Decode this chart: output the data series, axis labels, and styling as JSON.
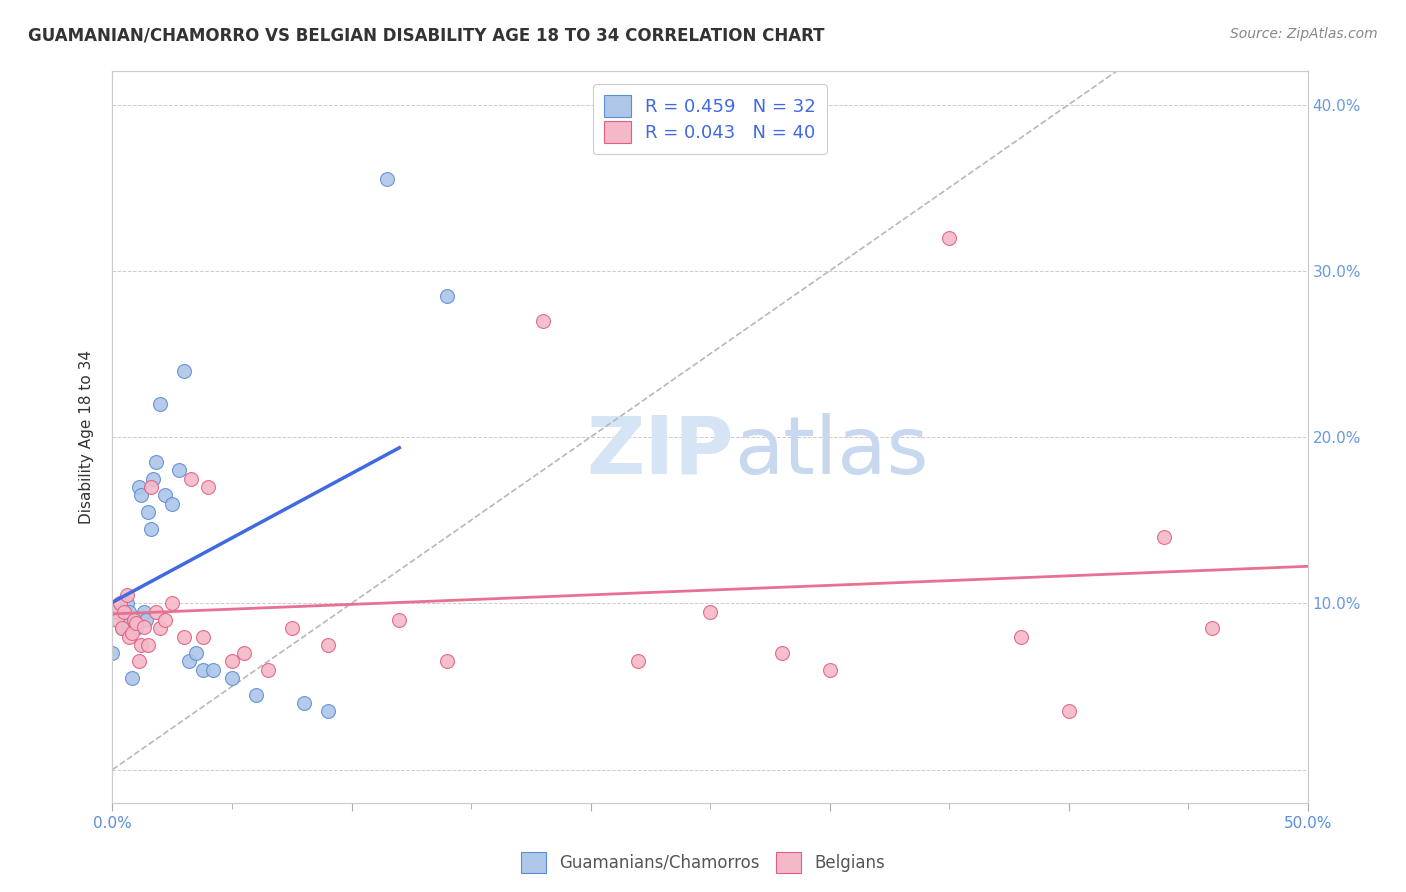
{
  "title": "GUAMANIAN/CHAMORRO VS BELGIAN DISABILITY AGE 18 TO 34 CORRELATION CHART",
  "source": "Source: ZipAtlas.com",
  "ylabel": "Disability Age 18 to 34",
  "xlim": [
    0.0,
    0.5
  ],
  "ylim": [
    -0.02,
    0.42
  ],
  "guamanian_color": "#aec6e8",
  "belgian_color": "#f5b8c8",
  "guamanian_edge_color": "#5b8dd9",
  "belgian_edge_color": "#e06080",
  "guamanian_line_color": "#4169e1",
  "belgian_line_color": "#e87090",
  "diagonal_line_color": "#b8b8b8",
  "watermark_zip": "ZIP",
  "watermark_atlas": "atlas",
  "watermark_color": "#d5e5f5",
  "background_color": "#ffffff",
  "right_tick_color": "#6699dd",
  "guam_x": [
    0.0,
    0.003,
    0.004,
    0.005,
    0.006,
    0.007,
    0.008,
    0.009,
    0.01,
    0.011,
    0.012,
    0.013,
    0.014,
    0.015,
    0.016,
    0.017,
    0.018,
    0.02,
    0.022,
    0.025,
    0.028,
    0.03,
    0.032,
    0.035,
    0.038,
    0.042,
    0.05,
    0.06,
    0.08,
    0.09,
    0.115,
    0.14
  ],
  "guam_y": [
    0.07,
    0.095,
    0.085,
    0.09,
    0.1,
    0.095,
    0.055,
    0.085,
    0.085,
    0.17,
    0.165,
    0.095,
    0.09,
    0.155,
    0.145,
    0.175,
    0.185,
    0.22,
    0.165,
    0.16,
    0.18,
    0.24,
    0.065,
    0.07,
    0.06,
    0.06,
    0.055,
    0.045,
    0.04,
    0.035,
    0.355,
    0.285
  ],
  "belgian_x": [
    0.0,
    0.002,
    0.003,
    0.004,
    0.005,
    0.006,
    0.007,
    0.008,
    0.009,
    0.01,
    0.011,
    0.012,
    0.013,
    0.015,
    0.016,
    0.018,
    0.02,
    0.022,
    0.025,
    0.03,
    0.033,
    0.038,
    0.04,
    0.05,
    0.055,
    0.065,
    0.075,
    0.09,
    0.12,
    0.14,
    0.18,
    0.22,
    0.25,
    0.28,
    0.3,
    0.35,
    0.38,
    0.4,
    0.44,
    0.46
  ],
  "belgian_y": [
    0.095,
    0.09,
    0.1,
    0.085,
    0.095,
    0.105,
    0.08,
    0.082,
    0.09,
    0.088,
    0.065,
    0.075,
    0.086,
    0.075,
    0.17,
    0.095,
    0.085,
    0.09,
    0.1,
    0.08,
    0.175,
    0.08,
    0.17,
    0.065,
    0.07,
    0.06,
    0.085,
    0.075,
    0.09,
    0.065,
    0.27,
    0.065,
    0.095,
    0.07,
    0.06,
    0.32,
    0.08,
    0.035,
    0.14,
    0.085
  ]
}
